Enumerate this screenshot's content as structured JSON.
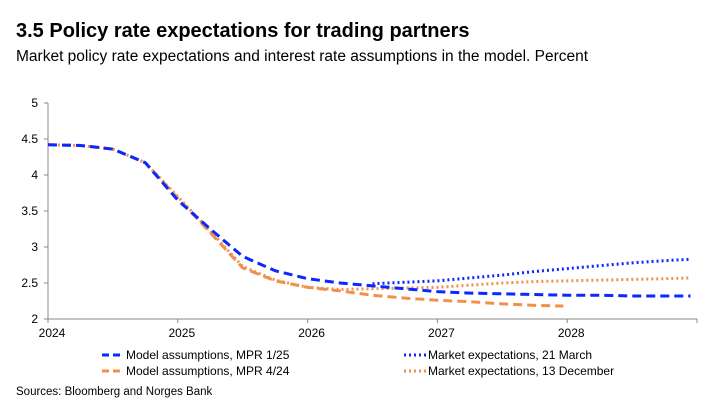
{
  "chart_data": {
    "type": "line",
    "title": "3.5 Policy rate expectations for trading partners",
    "subtitle": "Market policy rate expectations and interest rate assumptions in the model. Percent",
    "source": "Sources: Bloomberg and Norges Bank",
    "xlim": [
      2024,
      2029
    ],
    "ylim": [
      2,
      5
    ],
    "xticks": [
      "2024",
      "2025",
      "2026",
      "2027",
      "2028"
    ],
    "yticks": [
      "2",
      "2.5",
      "3",
      "3.5",
      "4",
      "4.5",
      "5"
    ],
    "colors": {
      "blue": "#0a28ff",
      "orange": "#f0914b"
    },
    "series": [
      {
        "name": "Model assumptions, MPR 1/25",
        "color": "#0a28ff",
        "style": "dashed",
        "x": [
          2024,
          2024.25,
          2024.5,
          2024.75,
          2025,
          2025.25,
          2025.5,
          2025.75,
          2026,
          2026.25,
          2026.5,
          2026.75,
          2027,
          2027.25,
          2027.5,
          2027.75,
          2028,
          2028.25,
          2028.5,
          2028.75,
          2028.95
        ],
        "values": [
          4.42,
          4.41,
          4.36,
          4.17,
          3.65,
          3.25,
          2.87,
          2.67,
          2.56,
          2.5,
          2.46,
          2.42,
          2.38,
          2.36,
          2.35,
          2.34,
          2.33,
          2.33,
          2.32,
          2.32,
          2.32
        ]
      },
      {
        "name": "Model assumptions, MPR 4/24",
        "color": "#f0914b",
        "style": "dashed",
        "x": [
          2024,
          2024.25,
          2024.5,
          2024.75,
          2025,
          2025.25,
          2025.5,
          2025.75,
          2026,
          2026.25,
          2026.5,
          2026.75,
          2027,
          2027.25,
          2027.5,
          2027.75,
          2027.97
        ],
        "values": [
          4.42,
          4.41,
          4.36,
          4.17,
          3.68,
          3.2,
          2.71,
          2.53,
          2.44,
          2.39,
          2.33,
          2.29,
          2.26,
          2.24,
          2.21,
          2.19,
          2.18
        ]
      },
      {
        "name": "Market expectations, 21 March",
        "color": "#0a28ff",
        "style": "dotted",
        "x": [
          2026.5,
          2026.75,
          2027,
          2027.25,
          2027.5,
          2027.75,
          2028,
          2028.25,
          2028.5,
          2028.75,
          2028.95
        ],
        "values": [
          2.49,
          2.51,
          2.53,
          2.57,
          2.61,
          2.66,
          2.7,
          2.74,
          2.78,
          2.81,
          2.83
        ]
      },
      {
        "name": "Market expectations, 13 December",
        "color": "#f0914b",
        "style": "dotted",
        "x": [
          2024,
          2024.25,
          2024.5,
          2024.75,
          2025,
          2025.25,
          2025.5,
          2025.75,
          2026,
          2026.25,
          2026.5,
          2026.75,
          2027,
          2027.25,
          2027.5,
          2027.75,
          2028,
          2028.25,
          2028.5,
          2028.75,
          2028.95
        ],
        "values": [
          4.42,
          4.41,
          4.36,
          4.17,
          3.7,
          3.22,
          2.73,
          2.54,
          2.44,
          2.41,
          2.42,
          2.43,
          2.44,
          2.47,
          2.5,
          2.52,
          2.53,
          2.54,
          2.55,
          2.56,
          2.57
        ]
      }
    ]
  }
}
